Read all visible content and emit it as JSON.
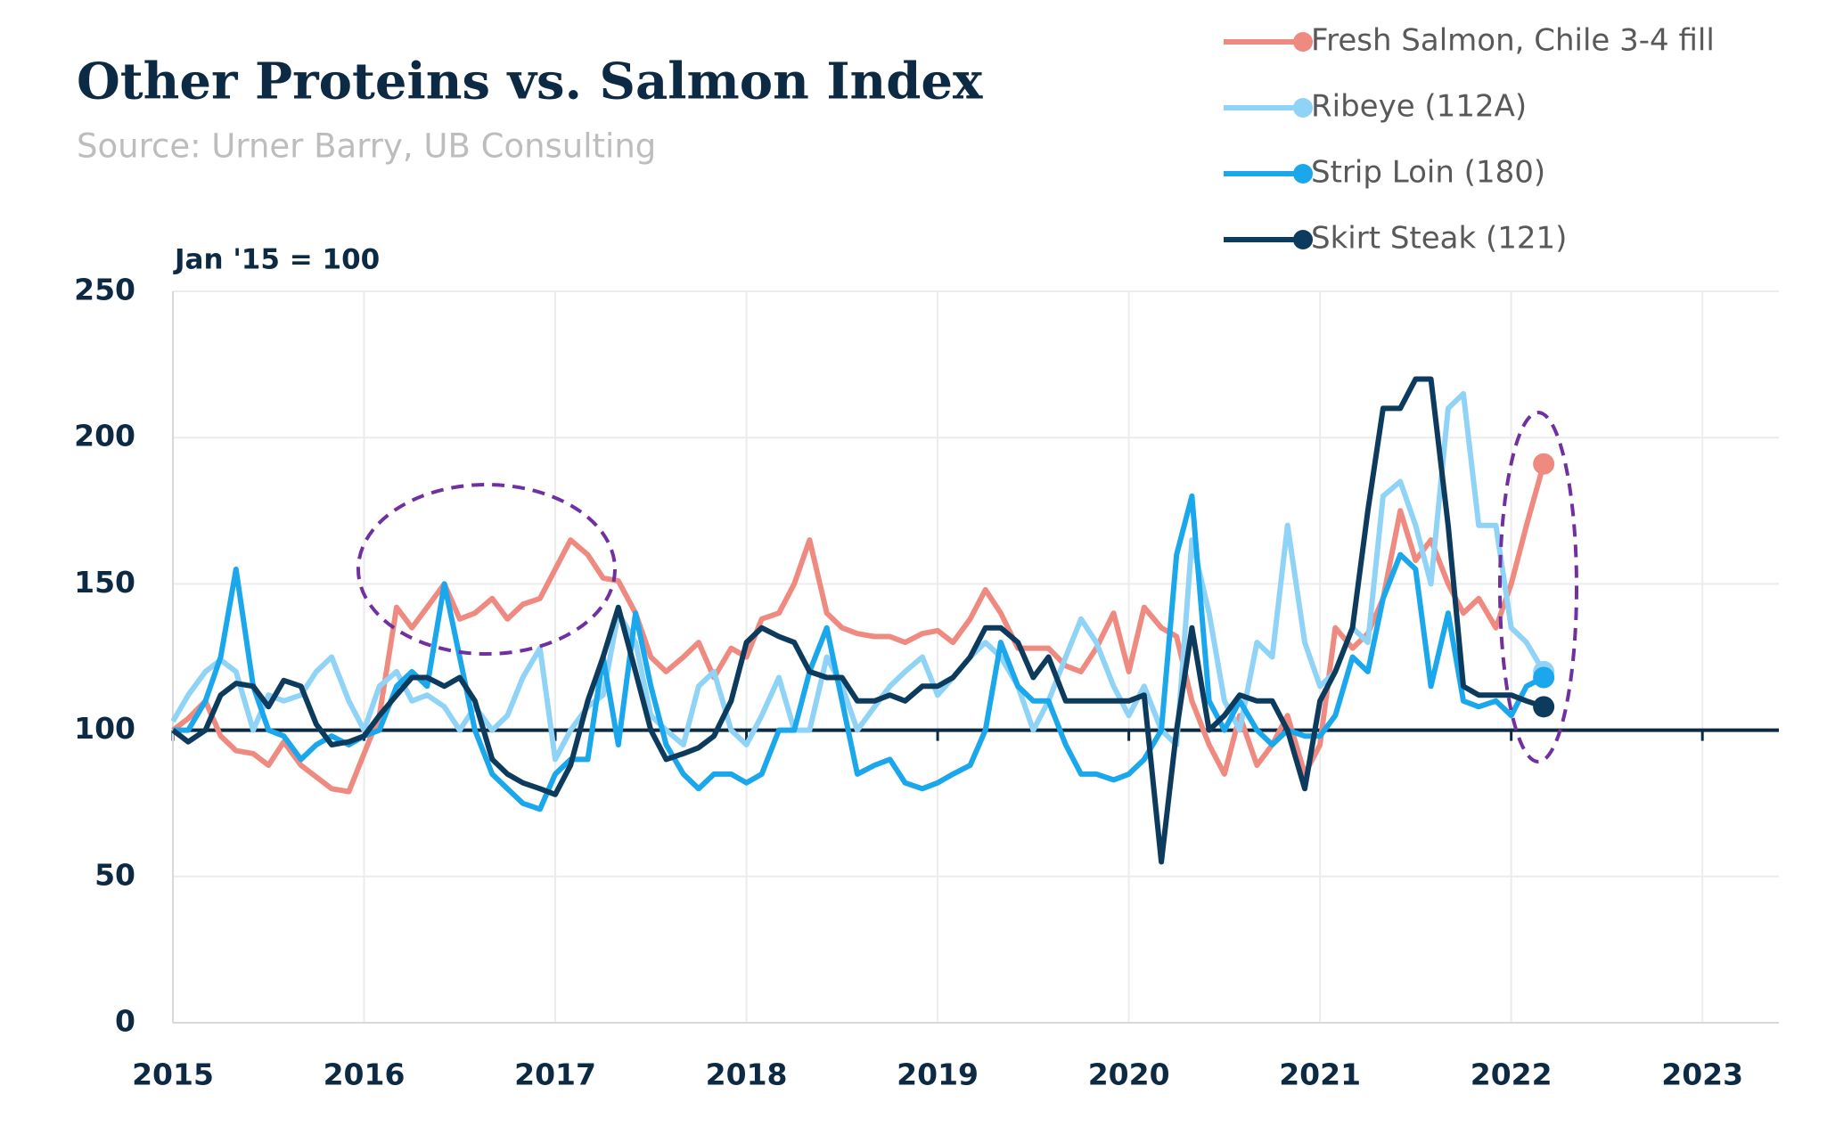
{
  "chart_data": {
    "type": "line",
    "title": "Other Proteins vs. Salmon Index",
    "subtitle": "Source: Urner Barry, UB Consulting",
    "y_axis_label": "Jan '15 = 100",
    "baseline": 100,
    "grid": true,
    "legend_position": "top-right",
    "x": [
      2015,
      2015.08,
      2015.17,
      2015.25,
      2015.33,
      2015.42,
      2015.5,
      2015.58,
      2015.67,
      2015.75,
      2015.83,
      2015.92,
      2016,
      2016.08,
      2016.17,
      2016.25,
      2016.33,
      2016.42,
      2016.5,
      2016.58,
      2016.67,
      2016.75,
      2016.83,
      2016.92,
      2017,
      2017.08,
      2017.17,
      2017.25,
      2017.33,
      2017.42,
      2017.5,
      2017.58,
      2017.67,
      2017.75,
      2017.83,
      2017.92,
      2018,
      2018.08,
      2018.17,
      2018.25,
      2018.33,
      2018.42,
      2018.5,
      2018.58,
      2018.67,
      2018.75,
      2018.83,
      2018.92,
      2019,
      2019.08,
      2019.17,
      2019.25,
      2019.33,
      2019.42,
      2019.5,
      2019.58,
      2019.67,
      2019.75,
      2019.83,
      2019.92,
      2020,
      2020.08,
      2020.17,
      2020.25,
      2020.33,
      2020.42,
      2020.5,
      2020.58,
      2020.67,
      2020.75,
      2020.83,
      2020.92,
      2021,
      2021.08,
      2021.17,
      2021.25,
      2021.33,
      2021.42,
      2021.5,
      2021.58,
      2021.67,
      2021.75,
      2021.83,
      2021.92,
      2022,
      2022.08,
      2022.17
    ],
    "series": [
      {
        "name": "Fresh Salmon, Chile 3-4 fill",
        "color": "#ef8a80",
        "values": [
          100,
          104,
          110,
          98,
          93,
          92,
          88,
          96,
          88,
          84,
          80,
          79,
          92,
          105,
          142,
          135,
          142,
          150,
          138,
          140,
          145,
          138,
          143,
          145,
          155,
          165,
          160,
          152,
          151,
          140,
          125,
          120,
          125,
          130,
          118,
          128,
          125,
          138,
          140,
          150,
          165,
          140,
          135,
          133,
          132,
          132,
          130,
          133,
          134,
          130,
          138,
          148,
          140,
          128,
          128,
          128,
          122,
          120,
          128,
          140,
          120,
          142,
          135,
          132,
          110,
          95,
          85,
          105,
          88,
          95,
          105,
          85,
          95,
          135,
          128,
          133,
          145,
          175,
          158,
          165,
          150,
          140,
          145,
          135,
          150,
          170,
          191
        ]
      },
      {
        "name": "Ribeye (112A)",
        "color": "#8fd3f7",
        "values": [
          103,
          112,
          120,
          124,
          120,
          100,
          112,
          110,
          112,
          120,
          125,
          110,
          100,
          115,
          120,
          110,
          112,
          108,
          100,
          108,
          100,
          105,
          118,
          128,
          90,
          100,
          108,
          112,
          140,
          130,
          105,
          100,
          95,
          115,
          120,
          100,
          95,
          105,
          118,
          100,
          100,
          125,
          115,
          100,
          108,
          115,
          120,
          125,
          112,
          118,
          125,
          130,
          125,
          115,
          100,
          110,
          125,
          138,
          130,
          115,
          105,
          115,
          100,
          95,
          165,
          140,
          110,
          100,
          130,
          125,
          170,
          130,
          115,
          120,
          135,
          130,
          180,
          185,
          170,
          150,
          210,
          215,
          170,
          170,
          135,
          130,
          120
        ]
      },
      {
        "name": "Strip Loin (180)",
        "color": "#1aa7ec",
        "values": [
          100,
          100,
          110,
          125,
          155,
          115,
          100,
          98,
          90,
          95,
          98,
          95,
          98,
          100,
          115,
          120,
          115,
          150,
          125,
          100,
          85,
          80,
          75,
          73,
          85,
          90,
          90,
          125,
          95,
          140,
          115,
          95,
          85,
          80,
          85,
          85,
          82,
          85,
          100,
          100,
          120,
          135,
          110,
          85,
          88,
          90,
          82,
          80,
          82,
          85,
          88,
          100,
          130,
          115,
          110,
          110,
          95,
          85,
          85,
          83,
          85,
          90,
          100,
          160,
          180,
          110,
          100,
          110,
          100,
          95,
          100,
          98,
          98,
          105,
          125,
          120,
          145,
          160,
          155,
          115,
          140,
          110,
          108,
          110,
          105,
          115,
          118
        ]
      },
      {
        "name": "Skirt Steak (121)",
        "color": "#0d3b5e",
        "values": [
          100,
          96,
          100,
          112,
          116,
          115,
          108,
          117,
          115,
          102,
          95,
          96,
          98,
          105,
          112,
          118,
          118,
          115,
          118,
          110,
          90,
          85,
          82,
          80,
          78,
          88,
          110,
          125,
          142,
          120,
          100,
          90,
          92,
          94,
          98,
          110,
          130,
          135,
          132,
          130,
          120,
          118,
          118,
          110,
          110,
          112,
          110,
          115,
          115,
          118,
          125,
          135,
          135,
          130,
          118,
          125,
          110,
          110,
          110,
          110,
          110,
          112,
          55,
          100,
          135,
          100,
          105,
          112,
          110,
          110,
          100,
          80,
          110,
          120,
          135,
          175,
          210,
          210,
          220,
          220,
          170,
          115,
          112,
          112,
          112,
          110,
          108
        ]
      }
    ],
    "xlim": [
      2015,
      2023.4
    ],
    "xticks": [
      2015,
      2016,
      2017,
      2018,
      2019,
      2020,
      2021,
      2022,
      2023
    ],
    "ylim": [
      0,
      250
    ],
    "yticks": [
      0,
      50,
      100,
      150,
      200,
      250
    ]
  }
}
